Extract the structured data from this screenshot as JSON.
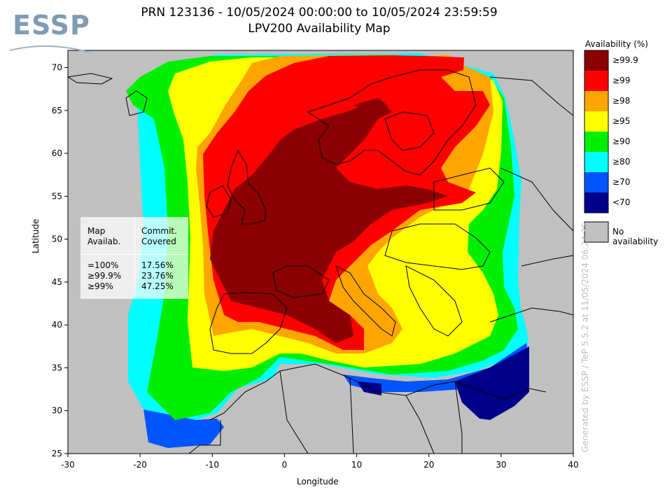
{
  "header": {
    "title_line1": "PRN 123136 - 10/05/2024 00:00:00 to 10/05/2024 23:59:59",
    "title_line2": "LPV200 Availability Map",
    "logo_text": "ESSP"
  },
  "axes": {
    "xlabel": "Longitude",
    "ylabel": "Latitude",
    "x_range": [
      -30,
      40
    ],
    "y_range": [
      25,
      72
    ],
    "x_ticks": [
      "-30",
      "-20",
      "-10",
      "0",
      "10",
      "20",
      "30",
      "40"
    ],
    "y_ticks": [
      "70",
      "65",
      "60",
      "55",
      "50",
      "45",
      "40",
      "35",
      "30",
      "25"
    ]
  },
  "legend": {
    "title": "Availability (%)",
    "items": [
      {
        "label": "≥99.9",
        "color": "#8b0000"
      },
      {
        "label": "≥99",
        "color": "#ff0000"
      },
      {
        "label": "≥98",
        "color": "#ffa500"
      },
      {
        "label": "≥95",
        "color": "#ffff00"
      },
      {
        "label": "≥90",
        "color": "#00ee00"
      },
      {
        "label": "≥80",
        "color": "#00ffff"
      },
      {
        "label": "≥70",
        "color": "#0055ff"
      },
      {
        "label": "<70",
        "color": "#00008b"
      }
    ],
    "no_availability": {
      "label": "No availability",
      "color": "#c0c0c0"
    }
  },
  "stats_table": {
    "col1_header_line1": "Map",
    "col1_header_line2": "Availab.",
    "col2_header_line1": "Commit.",
    "col2_header_line2": "Covered",
    "rows": [
      {
        "level": "=100%",
        "covered": "17.56%"
      },
      {
        "level": "≥99.9%",
        "covered": "23.76%"
      },
      {
        "level": "≥99%",
        "covered": "47.25%"
      }
    ]
  },
  "watermark": "Generated by ESSP / TeP 5.5.2 at 11/05/2024 06:24:35"
}
